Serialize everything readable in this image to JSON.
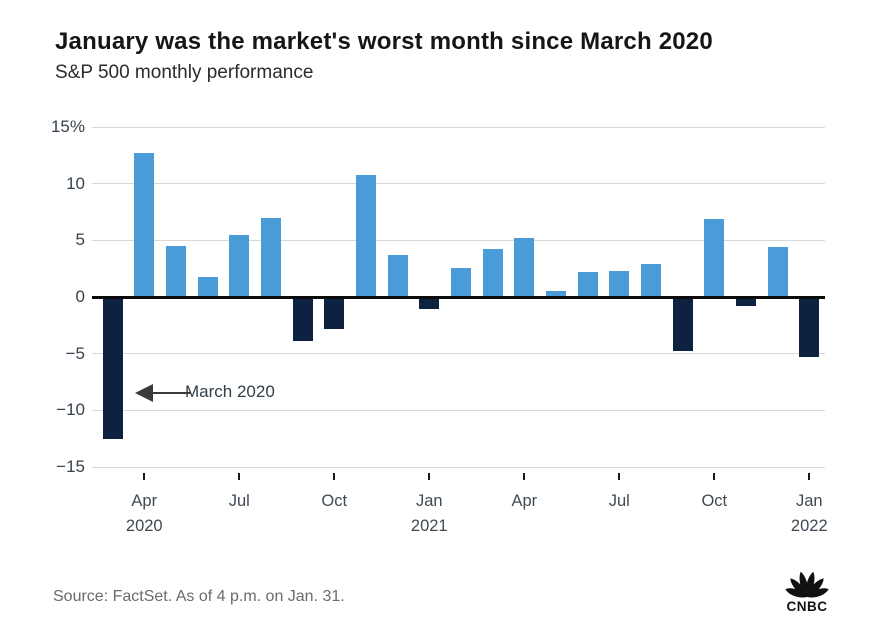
{
  "page": {
    "source_note": "Source: FactSet. As of 4 p.m. on Jan. 31.",
    "logo_text": "CNBC"
  },
  "chart_data": {
    "type": "bar",
    "title": "January was the market's worst month since March 2020",
    "subtitle": "S&P 500 monthly performance",
    "ylim": [
      -15,
      15
    ],
    "grid": "horizontal",
    "legend_position": "none",
    "ytick_values": [
      15,
      10,
      5,
      0,
      -5,
      -10,
      -15
    ],
    "ytick_labels": [
      "15%",
      "10",
      "5",
      "0",
      "−5",
      "−10",
      "−15"
    ],
    "categories": [
      "Mar 2020",
      "Apr 2020",
      "May 2020",
      "Jun 2020",
      "Jul 2020",
      "Aug 2020",
      "Sep 2020",
      "Oct 2020",
      "Nov 2020",
      "Dec 2020",
      "Jan 2021",
      "Feb 2021",
      "Mar 2021",
      "Apr 2021",
      "May 2021",
      "Jun 2021",
      "Jul 2021",
      "Aug 2021",
      "Sep 2021",
      "Oct 2021",
      "Nov 2021",
      "Dec 2021",
      "Jan 2022"
    ],
    "values": [
      -12.5,
      12.7,
      4.5,
      1.8,
      5.5,
      7.0,
      -3.9,
      -2.8,
      10.8,
      3.7,
      -1.1,
      2.6,
      4.2,
      5.2,
      0.55,
      2.2,
      2.3,
      2.9,
      -4.8,
      6.9,
      -0.8,
      4.4,
      -5.3
    ],
    "xticks": [
      {
        "index": 1,
        "line1": "Apr",
        "line2": "2020"
      },
      {
        "index": 4,
        "line1": "Jul",
        "line2": ""
      },
      {
        "index": 7,
        "line1": "Oct",
        "line2": ""
      },
      {
        "index": 10,
        "line1": "Jan",
        "line2": "2021"
      },
      {
        "index": 13,
        "line1": "Apr",
        "line2": ""
      },
      {
        "index": 16,
        "line1": "Jul",
        "line2": ""
      },
      {
        "index": 19,
        "line1": "Oct",
        "line2": ""
      },
      {
        "index": 22,
        "line1": "Jan",
        "line2": "2022"
      }
    ],
    "annotation": {
      "label": "March 2020",
      "target_category": "Mar 2020"
    },
    "colors": {
      "positive_bar": "#4A9CD8",
      "negative_bar": "#0C2240",
      "gridline": "#D8D8D8",
      "zero_line": "#0A0A0A",
      "annotation_arrow": "#3A3A3A"
    }
  }
}
